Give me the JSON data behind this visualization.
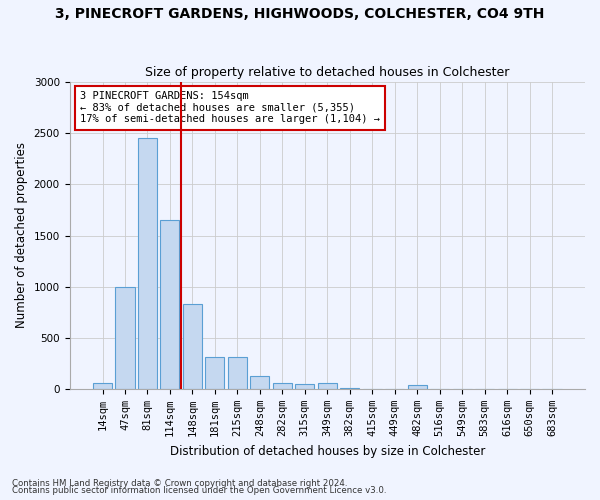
{
  "title": "3, PINECROFT GARDENS, HIGHWOODS, COLCHESTER, CO4 9TH",
  "subtitle": "Size of property relative to detached houses in Colchester",
  "xlabel": "Distribution of detached houses by size in Colchester",
  "ylabel": "Number of detached properties",
  "categories": [
    "14sqm",
    "47sqm",
    "81sqm",
    "114sqm",
    "148sqm",
    "181sqm",
    "215sqm",
    "248sqm",
    "282sqm",
    "315sqm",
    "349sqm",
    "382sqm",
    "415sqm",
    "449sqm",
    "482sqm",
    "516sqm",
    "549sqm",
    "583sqm",
    "616sqm",
    "650sqm",
    "683sqm"
  ],
  "values": [
    60,
    1000,
    2450,
    1650,
    830,
    310,
    310,
    130,
    55,
    45,
    55,
    10,
    0,
    0,
    35,
    0,
    0,
    0,
    0,
    0,
    0
  ],
  "bar_color": "#c5d8f0",
  "bar_edge_color": "#5a9fd4",
  "vline_x": 3.5,
  "vline_color": "#cc0000",
  "annotation_text": "3 PINECROFT GARDENS: 154sqm\n← 83% of detached houses are smaller (5,355)\n17% of semi-detached houses are larger (1,104) →",
  "annotation_box_color": "#cc0000",
  "ylim": [
    0,
    3000
  ],
  "yticks": [
    0,
    500,
    1000,
    1500,
    2000,
    2500,
    3000
  ],
  "grid_color": "#cccccc",
  "bg_color": "#f0f4ff",
  "footer1": "Contains HM Land Registry data © Crown copyright and database right 2024.",
  "footer2": "Contains public sector information licensed under the Open Government Licence v3.0.",
  "title_fontsize": 10,
  "subtitle_fontsize": 9,
  "xlabel_fontsize": 8.5,
  "ylabel_fontsize": 8.5,
  "tick_fontsize": 7.5,
  "annotation_fontsize": 7.5
}
